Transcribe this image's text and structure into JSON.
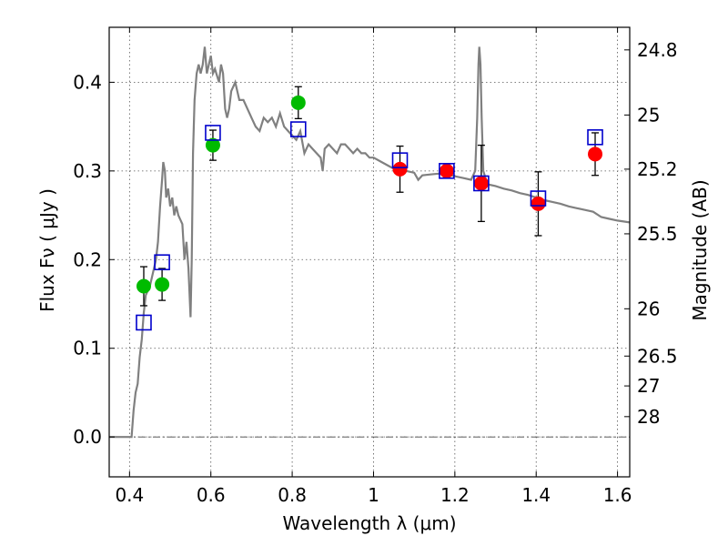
{
  "chart_data": {
    "type": "scatter",
    "xlabel": "Wavelength  λ (μm)",
    "ylabel": "Flux  Fν  ( μJy )",
    "ylabel_right": "Magnitude (AB)",
    "xlim": [
      0.35,
      1.63
    ],
    "ylim": [
      -0.045,
      0.462
    ],
    "x_ticks": [
      0.4,
      0.6,
      0.8,
      1.0,
      1.2,
      1.4,
      1.6
    ],
    "x_tick_labels": [
      "0.4",
      "0.6",
      "0.8",
      "1",
      "1.2",
      "1.4",
      "1.6"
    ],
    "y_ticks": [
      0.0,
      0.1,
      0.2,
      0.3,
      0.4
    ],
    "y_tick_labels": [
      "0.0",
      "0.1",
      "0.2",
      "0.3",
      "0.4"
    ],
    "right_ticks": [
      {
        "label": "24.8",
        "mag": 24.8
      },
      {
        "label": "25",
        "mag": 25.0
      },
      {
        "label": "25.2",
        "mag": 25.2
      },
      {
        "label": "25.5",
        "mag": 25.5
      },
      {
        "label": "26",
        "mag": 26.0
      },
      {
        "label": "26.5",
        "mag": 26.5
      },
      {
        "label": "27",
        "mag": 27.0
      },
      {
        "label": "28",
        "mag": 28.0
      }
    ],
    "grid": true,
    "zero_line": true,
    "colors": {
      "model": "#808080",
      "green": "#00bb00",
      "red": "#ff0000",
      "squares": "#0000cc",
      "errorbar": "#000000",
      "grid": "#555555"
    },
    "series": [
      {
        "name": "model spectrum",
        "kind": "line",
        "points": [
          [
            0.35,
            0.0
          ],
          [
            0.4,
            0.0
          ],
          [
            0.405,
            0.0
          ],
          [
            0.41,
            0.03
          ],
          [
            0.415,
            0.05
          ],
          [
            0.42,
            0.06
          ],
          [
            0.425,
            0.09
          ],
          [
            0.43,
            0.11
          ],
          [
            0.435,
            0.14
          ],
          [
            0.44,
            0.16
          ],
          [
            0.45,
            0.17
          ],
          [
            0.46,
            0.19
          ],
          [
            0.465,
            0.2
          ],
          [
            0.47,
            0.22
          ],
          [
            0.475,
            0.26
          ],
          [
            0.48,
            0.29
          ],
          [
            0.483,
            0.31
          ],
          [
            0.487,
            0.3
          ],
          [
            0.49,
            0.27
          ],
          [
            0.495,
            0.28
          ],
          [
            0.5,
            0.26
          ],
          [
            0.505,
            0.27
          ],
          [
            0.51,
            0.25
          ],
          [
            0.515,
            0.26
          ],
          [
            0.52,
            0.25
          ],
          [
            0.525,
            0.245
          ],
          [
            0.53,
            0.24
          ],
          [
            0.535,
            0.2
          ],
          [
            0.54,
            0.22
          ],
          [
            0.545,
            0.19
          ],
          [
            0.55,
            0.135
          ],
          [
            0.553,
            0.2
          ],
          [
            0.556,
            0.32
          ],
          [
            0.56,
            0.38
          ],
          [
            0.565,
            0.41
          ],
          [
            0.57,
            0.42
          ],
          [
            0.575,
            0.41
          ],
          [
            0.58,
            0.42
          ],
          [
            0.585,
            0.44
          ],
          [
            0.59,
            0.41
          ],
          [
            0.6,
            0.43
          ],
          [
            0.605,
            0.41
          ],
          [
            0.61,
            0.415
          ],
          [
            0.62,
            0.4
          ],
          [
            0.625,
            0.42
          ],
          [
            0.63,
            0.41
          ],
          [
            0.635,
            0.37
          ],
          [
            0.64,
            0.36
          ],
          [
            0.645,
            0.37
          ],
          [
            0.65,
            0.39
          ],
          [
            0.66,
            0.4
          ],
          [
            0.67,
            0.38
          ],
          [
            0.68,
            0.38
          ],
          [
            0.69,
            0.37
          ],
          [
            0.7,
            0.36
          ],
          [
            0.71,
            0.35
          ],
          [
            0.72,
            0.345
          ],
          [
            0.73,
            0.36
          ],
          [
            0.74,
            0.355
          ],
          [
            0.75,
            0.36
          ],
          [
            0.76,
            0.35
          ],
          [
            0.77,
            0.365
          ],
          [
            0.78,
            0.35
          ],
          [
            0.79,
            0.345
          ],
          [
            0.8,
            0.34
          ],
          [
            0.81,
            0.335
          ],
          [
            0.82,
            0.345
          ],
          [
            0.83,
            0.32
          ],
          [
            0.84,
            0.33
          ],
          [
            0.85,
            0.325
          ],
          [
            0.86,
            0.32
          ],
          [
            0.87,
            0.315
          ],
          [
            0.875,
            0.3
          ],
          [
            0.88,
            0.325
          ],
          [
            0.89,
            0.33
          ],
          [
            0.9,
            0.325
          ],
          [
            0.91,
            0.32
          ],
          [
            0.92,
            0.33
          ],
          [
            0.93,
            0.33
          ],
          [
            0.94,
            0.325
          ],
          [
            0.95,
            0.32
          ],
          [
            0.96,
            0.325
          ],
          [
            0.97,
            0.32
          ],
          [
            0.98,
            0.32
          ],
          [
            0.99,
            0.315
          ],
          [
            1.0,
            0.315
          ],
          [
            1.02,
            0.31
          ],
          [
            1.04,
            0.305
          ],
          [
            1.06,
            0.3
          ],
          [
            1.08,
            0.3
          ],
          [
            1.1,
            0.298
          ],
          [
            1.11,
            0.29
          ],
          [
            1.12,
            0.295
          ],
          [
            1.14,
            0.296
          ],
          [
            1.16,
            0.297
          ],
          [
            1.18,
            0.296
          ],
          [
            1.2,
            0.294
          ],
          [
            1.22,
            0.292
          ],
          [
            1.24,
            0.29
          ],
          [
            1.25,
            0.3
          ],
          [
            1.255,
            0.36
          ],
          [
            1.258,
            0.42
          ],
          [
            1.26,
            0.44
          ],
          [
            1.263,
            0.42
          ],
          [
            1.266,
            0.36
          ],
          [
            1.27,
            0.3
          ],
          [
            1.28,
            0.285
          ],
          [
            1.3,
            0.283
          ],
          [
            1.32,
            0.28
          ],
          [
            1.34,
            0.278
          ],
          [
            1.36,
            0.275
          ],
          [
            1.38,
            0.273
          ],
          [
            1.4,
            0.27
          ],
          [
            1.42,
            0.267
          ],
          [
            1.44,
            0.265
          ],
          [
            1.46,
            0.263
          ],
          [
            1.48,
            0.26
          ],
          [
            1.5,
            0.258
          ],
          [
            1.52,
            0.256
          ],
          [
            1.54,
            0.254
          ],
          [
            1.56,
            0.248
          ],
          [
            1.58,
            0.246
          ],
          [
            1.6,
            0.244
          ],
          [
            1.63,
            0.242
          ]
        ]
      },
      {
        "name": "green points",
        "kind": "points",
        "points": [
          {
            "x": 0.435,
            "y": 0.17,
            "err": 0.022
          },
          {
            "x": 0.48,
            "y": 0.172,
            "err": 0.018
          },
          {
            "x": 0.605,
            "y": 0.329,
            "err": 0.017
          },
          {
            "x": 0.815,
            "y": 0.377,
            "err": 0.018
          }
        ]
      },
      {
        "name": "red points",
        "kind": "points",
        "points": [
          {
            "x": 1.065,
            "y": 0.302,
            "err": 0.026
          },
          {
            "x": 1.18,
            "y": 0.3,
            "err": 0.008
          },
          {
            "x": 1.265,
            "y": 0.286,
            "err": 0.043
          },
          {
            "x": 1.405,
            "y": 0.263,
            "err": 0.036
          },
          {
            "x": 1.545,
            "y": 0.319,
            "err": 0.024
          }
        ]
      },
      {
        "name": "model photometry",
        "kind": "squares",
        "points": [
          {
            "x": 0.435,
            "y": 0.129
          },
          {
            "x": 0.48,
            "y": 0.197
          },
          {
            "x": 0.605,
            "y": 0.343
          },
          {
            "x": 0.815,
            "y": 0.347
          },
          {
            "x": 1.065,
            "y": 0.312
          },
          {
            "x": 1.18,
            "y": 0.3
          },
          {
            "x": 1.265,
            "y": 0.286
          },
          {
            "x": 1.405,
            "y": 0.269
          },
          {
            "x": 1.545,
            "y": 0.338
          }
        ]
      }
    ]
  }
}
